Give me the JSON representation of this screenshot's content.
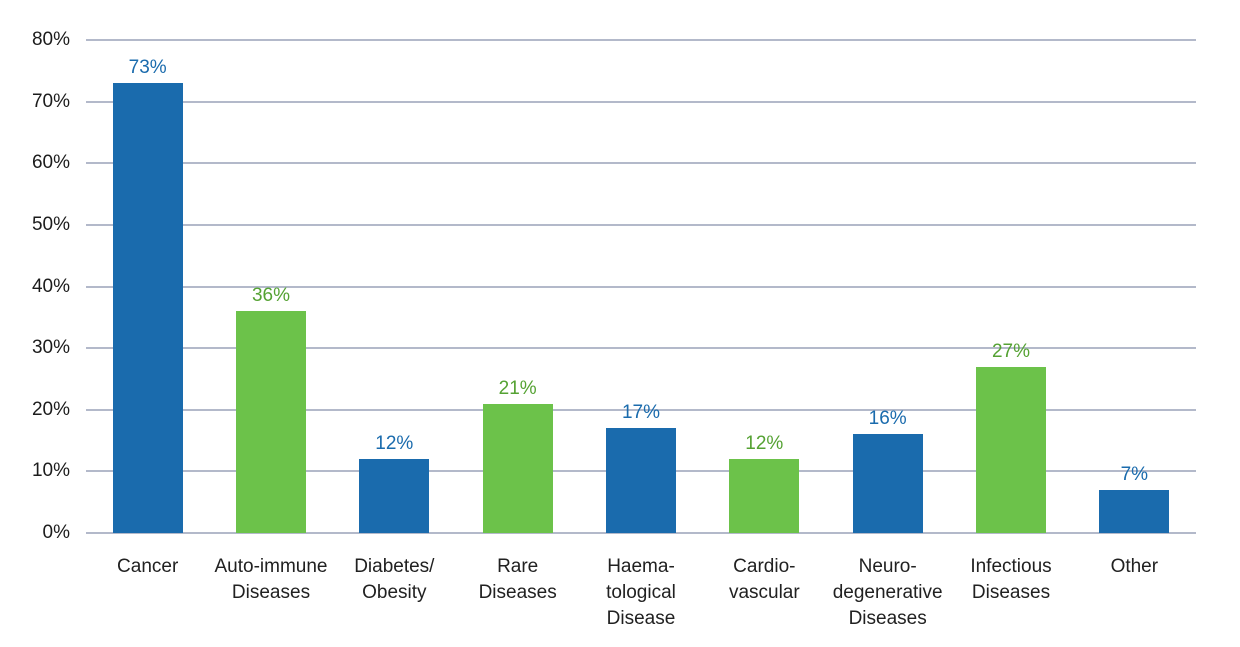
{
  "chart_data": {
    "type": "bar",
    "title": "",
    "xlabel": "",
    "ylabel": "",
    "categories": [
      "Cancer",
      "Auto-immune\nDiseases",
      "Diabetes/\nObesity",
      "Rare\nDiseases",
      "Haema-\ntological\nDisease",
      "Cardio-\nvascular",
      "Neuro-\ndegenerative\nDiseases",
      "Infectious\nDiseases",
      "Other"
    ],
    "values": [
      73,
      36,
      12,
      21,
      17,
      12,
      16,
      27,
      7
    ],
    "value_labels": [
      "73%",
      "36%",
      "12%",
      "21%",
      "17%",
      "12%",
      "16%",
      "27%",
      "7%"
    ],
    "bar_colors": [
      "blue",
      "green",
      "blue",
      "green",
      "blue",
      "green",
      "blue",
      "green",
      "blue"
    ],
    "palette": {
      "blue": {
        "fill": "#1A6BAD",
        "label": "#1A6BAD"
      },
      "green": {
        "fill": "#6CC24A",
        "label": "#55A233"
      }
    },
    "ylim": [
      0,
      80
    ],
    "ytick_step": 10,
    "ytick_labels": [
      "0%",
      "10%",
      "20%",
      "30%",
      "40%",
      "50%",
      "60%",
      "70%",
      "80%"
    ],
    "grid": true,
    "gridline_color": "#B3B9CA",
    "legend": null
  }
}
